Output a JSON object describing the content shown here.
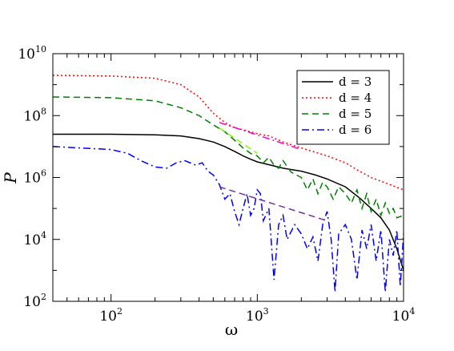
{
  "chart_data": {
    "type": "line",
    "xlabel": "ω",
    "ylabel": "P",
    "xscale": "log",
    "yscale": "log",
    "xlim": [
      40,
      10000
    ],
    "ylim": [
      100,
      10000000000
    ],
    "x_ticks": [
      {
        "value": 100,
        "base": "10",
        "exp": "2"
      },
      {
        "value": 1000,
        "base": "10",
        "exp": "3"
      },
      {
        "value": 10000,
        "base": "10",
        "exp": "4"
      }
    ],
    "y_ticks": [
      {
        "value": 100,
        "base": "10",
        "exp": "2"
      },
      {
        "value": 10000,
        "base": "10",
        "exp": "4"
      },
      {
        "value": 1000000,
        "base": "10",
        "exp": "6"
      },
      {
        "value": 100000000,
        "base": "10",
        "exp": "8"
      },
      {
        "value": 10000000000,
        "base": "10",
        "exp": "10"
      }
    ],
    "legend_position": "top-right",
    "series": [
      {
        "name": "d = 3",
        "color": "#000000",
        "dash": "solid",
        "points": [
          [
            40,
            25000000
          ],
          [
            100,
            25000000
          ],
          [
            200,
            24000000
          ],
          [
            300,
            22000000
          ],
          [
            400,
            18000000
          ],
          [
            500,
            14000000
          ],
          [
            600,
            10000000
          ],
          [
            700,
            7000000
          ],
          [
            800,
            5000000
          ],
          [
            900,
            3900000
          ],
          [
            1000,
            3200000
          ],
          [
            1200,
            2600000
          ],
          [
            1500,
            2000000
          ],
          [
            2000,
            1600000
          ],
          [
            2500,
            1200000
          ],
          [
            3000,
            900000
          ],
          [
            4000,
            500000
          ],
          [
            5000,
            220000
          ],
          [
            6000,
            100000
          ],
          [
            7000,
            50000
          ],
          [
            8000,
            20000
          ],
          [
            9000,
            5000
          ],
          [
            10000,
            1000
          ]
        ]
      },
      {
        "name": "d = 4",
        "color": "#ff0000",
        "dash": "dotted",
        "points": [
          [
            40,
            2000000000
          ],
          [
            100,
            1900000000
          ],
          [
            200,
            1600000000
          ],
          [
            300,
            1000000000
          ],
          [
            400,
            400000000
          ],
          [
            500,
            120000000
          ],
          [
            600,
            60000000
          ],
          [
            700,
            40000000
          ],
          [
            800,
            35000000
          ],
          [
            1000,
            26000000
          ],
          [
            1200,
            22000000
          ],
          [
            1500,
            14000000
          ],
          [
            2000,
            9000000
          ],
          [
            3000,
            5000000
          ],
          [
            4000,
            3000000
          ],
          [
            5000,
            1600000
          ],
          [
            6000,
            1000000
          ],
          [
            8000,
            600000
          ],
          [
            10000,
            400000
          ]
        ]
      },
      {
        "name": "d = 5",
        "color": "#008000",
        "dash": "dashed",
        "points": [
          [
            40,
            400000000
          ],
          [
            100,
            380000000
          ],
          [
            200,
            300000000
          ],
          [
            300,
            180000000
          ],
          [
            400,
            100000000
          ],
          [
            500,
            50000000
          ],
          [
            600,
            30000000
          ],
          [
            700,
            16000000
          ],
          [
            800,
            9000000
          ],
          [
            900,
            6000000
          ],
          [
            1000,
            5000000
          ],
          [
            1100,
            3000000
          ],
          [
            1200,
            4500000
          ],
          [
            1300,
            2500000
          ],
          [
            1400,
            2000000
          ],
          [
            1500,
            3500000
          ],
          [
            1700,
            1500000
          ],
          [
            2000,
            1000000
          ],
          [
            2200,
            400000
          ],
          [
            2400,
            900000
          ],
          [
            2600,
            300000
          ],
          [
            2800,
            700000
          ],
          [
            3000,
            500000
          ],
          [
            3300,
            200000
          ],
          [
            3600,
            500000
          ],
          [
            4000,
            300000
          ],
          [
            4400,
            150000
          ],
          [
            4800,
            400000
          ],
          [
            5200,
            100000
          ],
          [
            5600,
            300000
          ],
          [
            6000,
            80000
          ],
          [
            6500,
            200000
          ],
          [
            7000,
            60000
          ],
          [
            7500,
            150000
          ],
          [
            8000,
            70000
          ],
          [
            8500,
            100000
          ],
          [
            9000,
            50000
          ],
          [
            10000,
            60000
          ]
        ]
      },
      {
        "name": "d = 6",
        "color": "#0000ff",
        "dash": "dashdot",
        "points": [
          [
            40,
            10000000
          ],
          [
            100,
            8000000
          ],
          [
            130,
            6000000
          ],
          [
            160,
            3500000
          ],
          [
            200,
            2200000
          ],
          [
            240,
            2000000
          ],
          [
            280,
            3000000
          ],
          [
            320,
            3500000
          ],
          [
            380,
            2500000
          ],
          [
            420,
            3000000
          ],
          [
            460,
            1600000
          ],
          [
            500,
            1200000
          ],
          [
            550,
            600000
          ],
          [
            600,
            200000
          ],
          [
            650,
            300000
          ],
          [
            700,
            80000
          ],
          [
            750,
            30000
          ],
          [
            800,
            100000
          ],
          [
            850,
            300000
          ],
          [
            900,
            60000
          ],
          [
            950,
            100000
          ],
          [
            1000,
            400000
          ],
          [
            1050,
            300000
          ],
          [
            1100,
            40000
          ],
          [
            1200,
            100000
          ],
          [
            1300,
            500
          ],
          [
            1400,
            30000
          ],
          [
            1500,
            60000
          ],
          [
            1600,
            10000
          ],
          [
            1800,
            30000
          ],
          [
            2000,
            15000
          ],
          [
            2200,
            5000
          ],
          [
            2400,
            12000
          ],
          [
            2600,
            2000
          ],
          [
            2800,
            30000
          ],
          [
            3000,
            80000
          ],
          [
            3200,
            10000
          ],
          [
            3400,
            200
          ],
          [
            3600,
            15000
          ],
          [
            4000,
            30000
          ],
          [
            4400,
            10000
          ],
          [
            4800,
            500
          ],
          [
            5200,
            20000
          ],
          [
            5600,
            5000
          ],
          [
            6000,
            30000
          ],
          [
            6500,
            2000
          ],
          [
            7000,
            20000
          ],
          [
            7500,
            200
          ],
          [
            8000,
            10000
          ],
          [
            8500,
            3000
          ],
          [
            9000,
            20000
          ],
          [
            9500,
            300
          ],
          [
            10000,
            15000
          ]
        ]
      }
    ],
    "fit_lines": [
      {
        "color": "#ff00cc",
        "dash": "dashdot",
        "from": [
          550,
          60000000
        ],
        "to": [
          2000,
          8000000
        ]
      },
      {
        "color": "#80ff00",
        "dash": "dashed",
        "from": [
          550,
          40000000
        ],
        "to": [
          1000,
          6000000
        ]
      },
      {
        "color": "#7030a0",
        "dash": "dashed",
        "from": [
          550,
          500000
        ],
        "to": [
          3000,
          40000
        ]
      }
    ]
  }
}
